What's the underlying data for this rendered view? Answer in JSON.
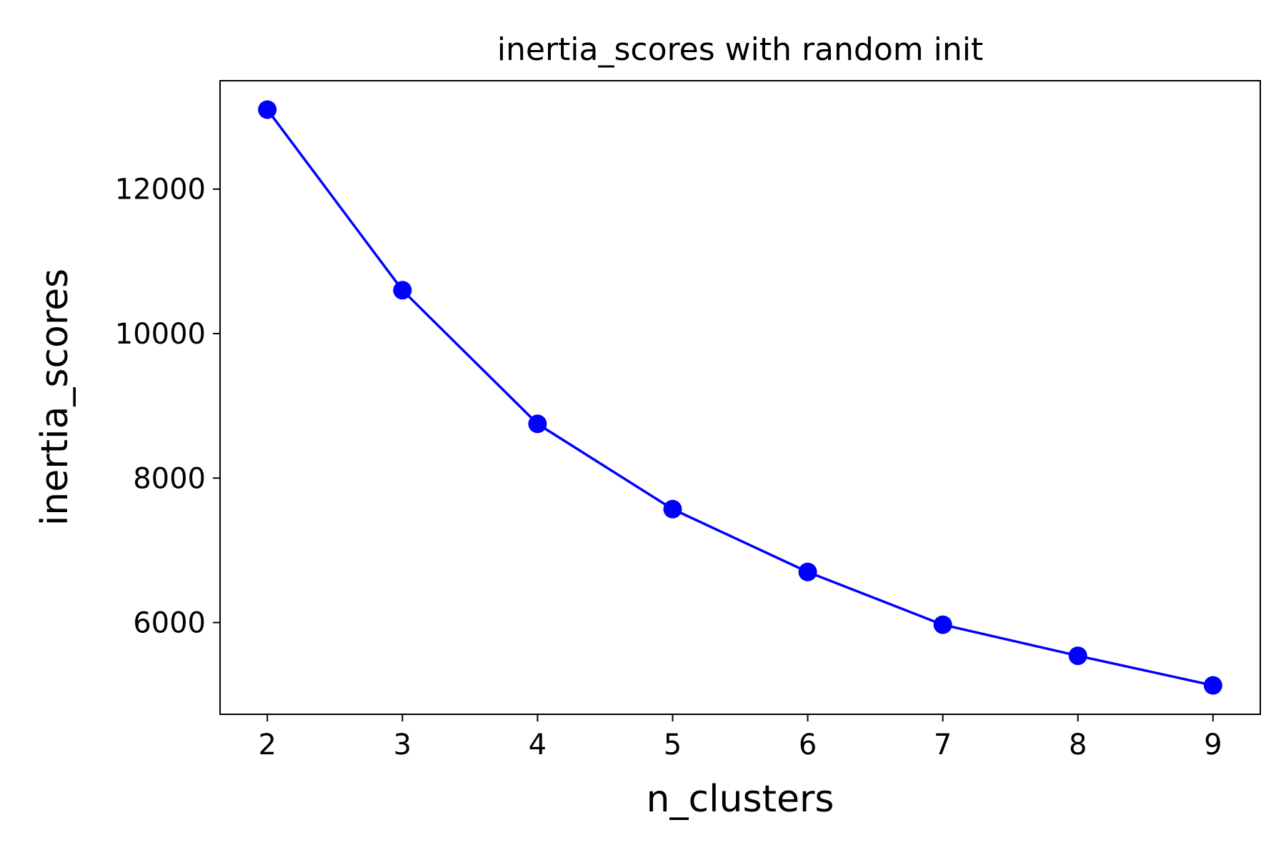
{
  "chart_data": {
    "type": "line",
    "title": "inertia_scores with random init",
    "xlabel": "n_clusters",
    "ylabel": "inertia_scores",
    "x": [
      2,
      3,
      4,
      5,
      6,
      7,
      8,
      9
    ],
    "series": [
      {
        "name": "",
        "color": "#0000ff",
        "marker": "circle",
        "values": [
          13100,
          10600,
          8750,
          7570,
          6700,
          5970,
          5540,
          5130
        ]
      }
    ],
    "xlim": [
      1.65,
      9.35
    ],
    "ylim": [
      4730,
      13500
    ],
    "xticks": [
      2,
      3,
      4,
      5,
      6,
      7,
      8,
      9
    ],
    "yticks": [
      6000,
      8000,
      10000,
      12000
    ],
    "grid": false,
    "legend": "none"
  }
}
